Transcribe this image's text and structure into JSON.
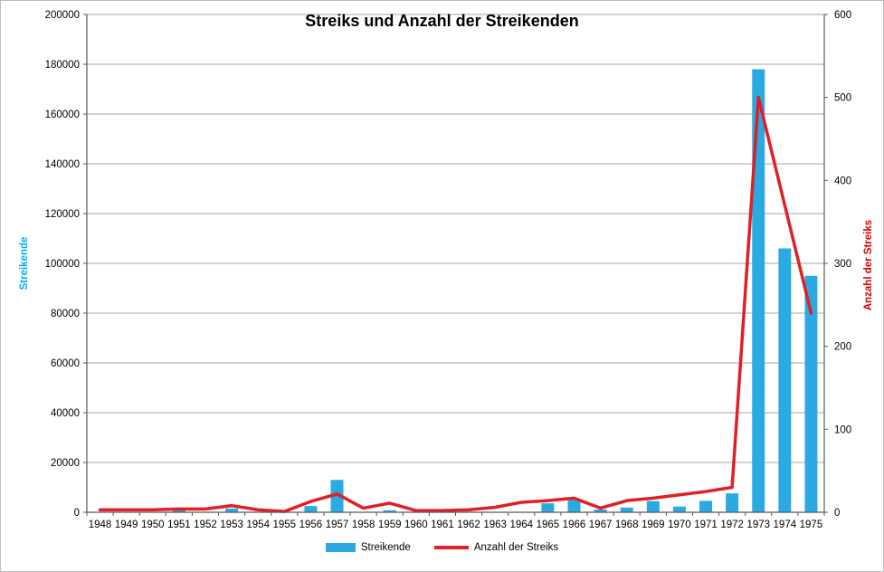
{
  "title": "Streiks und Anzahl der Streikenden",
  "legend": {
    "position": "bottom-center"
  },
  "colors": {
    "bar": "#2BAAE2",
    "line": "#E01F26",
    "left_axis_title": "#00B0F0",
    "right_axis_title": "#E00000",
    "gridline": "#A6A6A6",
    "axis_line": "#595959",
    "tick_text": "#000000"
  },
  "chart_data": {
    "type": "combo-bar-line",
    "title": "Streiks und Anzahl der Streikenden",
    "categories": [
      "1948",
      "1949",
      "1950",
      "1951",
      "1952",
      "1953",
      "1954",
      "1955",
      "1956",
      "1957",
      "1958",
      "1959",
      "1960",
      "1961",
      "1962",
      "1963",
      "1964",
      "1965",
      "1966",
      "1967",
      "1968",
      "1969",
      "1970",
      "1971",
      "1972",
      "1973",
      "1974",
      "1975"
    ],
    "series": [
      {
        "name": "Streikende",
        "type": "bar",
        "axis": "left",
        "color": "#2BAAE2",
        "values": [
          0,
          0,
          0,
          1000,
          0,
          1500,
          0,
          0,
          2500,
          13000,
          0,
          800,
          0,
          0,
          0,
          0,
          0,
          3600,
          5100,
          1100,
          1900,
          4500,
          2300,
          4600,
          7600,
          178000,
          106000,
          95000
        ]
      },
      {
        "name": "Anzahl der Streiks",
        "type": "line",
        "axis": "right",
        "color": "#E01F26",
        "values": [
          3,
          3,
          3,
          4,
          4,
          8,
          3,
          1,
          13,
          22,
          5,
          11,
          2,
          2,
          3,
          6,
          12,
          14,
          17,
          5,
          14,
          17,
          21,
          25,
          30,
          500,
          370,
          240
        ]
      }
    ],
    "left_axis": {
      "label": "Streikende",
      "min": 0,
      "max": 200000,
      "step": 20000,
      "tick_values": [
        0,
        20000,
        40000,
        60000,
        80000,
        100000,
        120000,
        140000,
        160000,
        180000,
        200000
      ],
      "tick_labels": [
        "0",
        "20000",
        "40000",
        "60000",
        "80000",
        "100000",
        "120000",
        "140000",
        "160000",
        "180000",
        "200000"
      ]
    },
    "right_axis": {
      "label": "Anzahl der Streiks",
      "min": 0,
      "max": 600,
      "step": 100,
      "tick_values": [
        0,
        100,
        200,
        300,
        400,
        500,
        600
      ],
      "tick_labels": [
        "0",
        "100",
        "200",
        "300",
        "400",
        "500",
        "600"
      ]
    },
    "grid": "horizontal",
    "legend_entries": [
      "Streikende",
      "Anzahl der Streiks"
    ]
  }
}
